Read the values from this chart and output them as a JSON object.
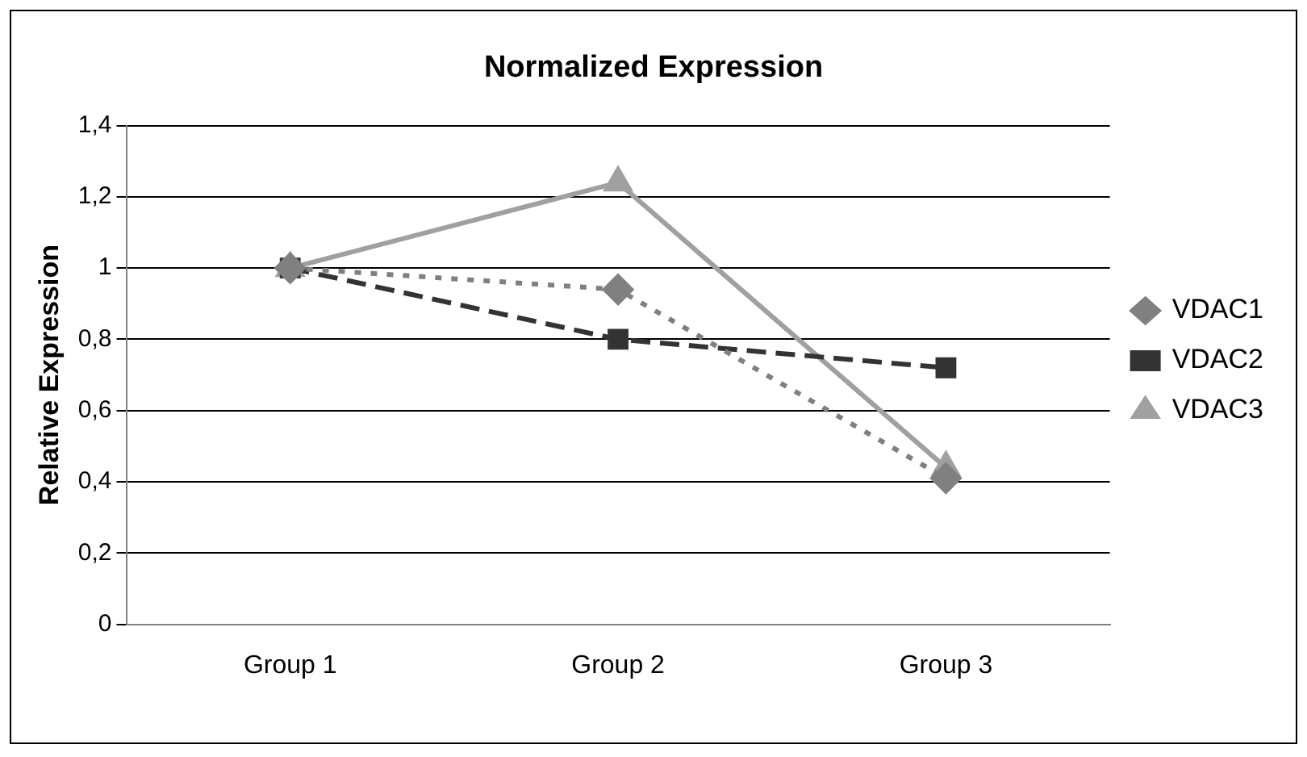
{
  "chart_data": {
    "type": "line",
    "title": "Normalized Expression",
    "ylabel": "Relative Expression",
    "categories": [
      "Group 1",
      "Group 2",
      "Group 3"
    ],
    "series": [
      {
        "name": "VDAC1",
        "color": "#808080",
        "values": [
          1,
          0.94,
          0.41
        ],
        "marker": "diamond",
        "line_style": "dotted"
      },
      {
        "name": "VDAC2",
        "color": "#333333",
        "values": [
          1,
          0.8,
          0.72
        ],
        "marker": "square",
        "line_style": "dashed"
      },
      {
        "name": "VDAC3",
        "color": "#a0a0a0",
        "values": [
          1,
          1.24,
          0.44
        ],
        "marker": "triangle",
        "line_style": "solid"
      }
    ],
    "ylim": [
      0,
      1.4
    ],
    "yticks": [
      {
        "value": 0,
        "label": "0"
      },
      {
        "value": 0.2,
        "label": "0,2"
      },
      {
        "value": 0.4,
        "label": "0,4"
      },
      {
        "value": 0.6,
        "label": "0,6"
      },
      {
        "value": 0.8,
        "label": "0,8"
      },
      {
        "value": 1,
        "label": "1"
      },
      {
        "value": 1.2,
        "label": "1,2"
      },
      {
        "value": 1.4,
        "label": "1,4"
      }
    ],
    "grid": "y",
    "legend": "right"
  }
}
